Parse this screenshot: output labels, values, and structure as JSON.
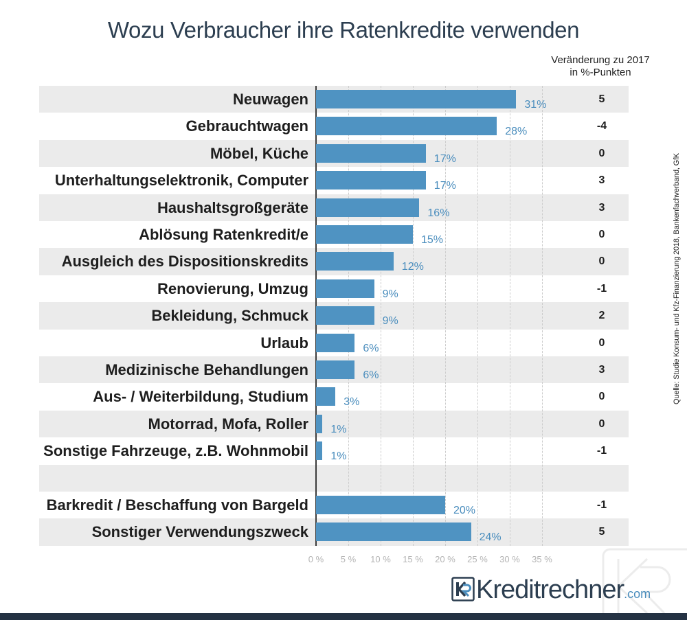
{
  "colors": {
    "title": "#2c3e50",
    "text": "#1e1e1e",
    "bar": "#4f93c2",
    "value_label": "#4a8dbd",
    "row_stripe": "#ebebeb",
    "gridline": "#cccccc",
    "axis": "#3b3b3b",
    "tick_label": "#b4b4b4",
    "logo_wordmark": "#2c3e50",
    "logo_suffix": "#4a8dbd",
    "watermark": "#ececec",
    "footer_bar": "#243243"
  },
  "logo": {
    "icon": "kr-logo-icon",
    "wordmark": "Kreditrechner",
    "suffix": ".com"
  },
  "chart_data": {
    "type": "bar",
    "title": "Wozu Verbraucher ihre Ratenkredite verwenden",
    "xlim": [
      0,
      35
    ],
    "xtick_step": 5,
    "xtick_labels": [
      "0 %",
      "5 %",
      "10 %",
      "15 %",
      "20 %",
      "25 %",
      "30 %",
      "35 %"
    ],
    "grid": true,
    "categories": [
      "Neuwagen",
      "Gebrauchtwagen",
      "Möbel, Küche",
      "Unterhaltungselektronik, Computer",
      "Haushaltsgroßgeräte",
      "Ablösung Ratenkredit/e",
      "Ausgleich des Dispositionskredits",
      "Renovierung, Umzug",
      "Bekleidung, Schmuck",
      "Urlaub",
      "Medizinische Behandlungen",
      "Aus- / Weiterbildung, Studium",
      "Motorrad, Mofa, Roller",
      "Sonstige Fahrzeuge, z.B. Wohnmobil",
      "Barkredit / Beschaffung von Bargeld",
      "Sonstiger Verwendungszweck"
    ],
    "values": [
      31,
      28,
      17,
      17,
      16,
      15,
      12,
      9,
      9,
      6,
      6,
      3,
      1,
      1,
      20,
      24
    ],
    "value_labels": [
      "31%",
      "28%",
      "17%",
      "17%",
      "16%",
      "15%",
      "12%",
      "9%",
      "9%",
      "6%",
      "6%",
      "3%",
      "1%",
      "1%",
      "20%",
      "24%"
    ],
    "group_sizes": [
      14,
      2
    ],
    "change_header": [
      "Veränderung zu 2017",
      "in %-Punkten"
    ],
    "change_vs_2017": [
      5,
      -4,
      0,
      3,
      3,
      0,
      0,
      -1,
      2,
      0,
      3,
      0,
      0,
      -1,
      -1,
      5
    ],
    "source": "Quelle: Studie Konsum- und Kfz-Finanzierung 2018, Bankenfachverband, GfK"
  }
}
